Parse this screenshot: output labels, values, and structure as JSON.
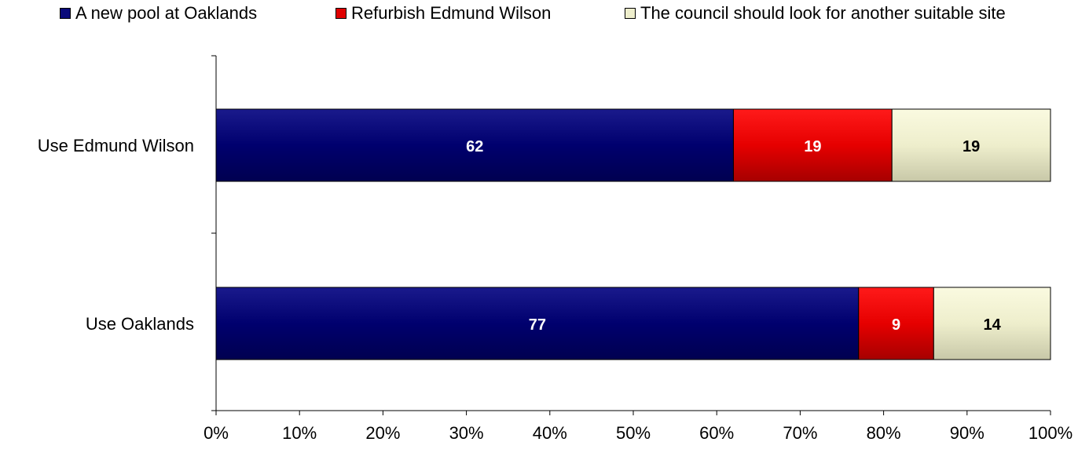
{
  "chart_data": {
    "type": "bar",
    "orientation": "horizontal",
    "stacked": true,
    "percent_stacked": true,
    "categories": [
      "Use Edmund Wilson",
      "Use Oaklands"
    ],
    "series": [
      {
        "name": "A new pool at Oaklands",
        "color": "#0a0a7a",
        "label_color": "#ffffff",
        "values": [
          62,
          77
        ]
      },
      {
        "name": "Refurbish Edmund Wilson",
        "color": "#e00000",
        "label_color": "#ffffff",
        "values": [
          19,
          9
        ]
      },
      {
        "name": "The council should look for another suitable site",
        "color": "#eeeecc",
        "label_color": "#000000",
        "values": [
          19,
          14
        ]
      }
    ],
    "xlim": [
      0,
      100
    ],
    "xticks": [
      "0%",
      "10%",
      "20%",
      "30%",
      "40%",
      "50%",
      "60%",
      "70%",
      "80%",
      "90%",
      "100%"
    ],
    "xlabel": "",
    "ylabel": "",
    "title": "",
    "grid": false,
    "legend_position": "top"
  }
}
